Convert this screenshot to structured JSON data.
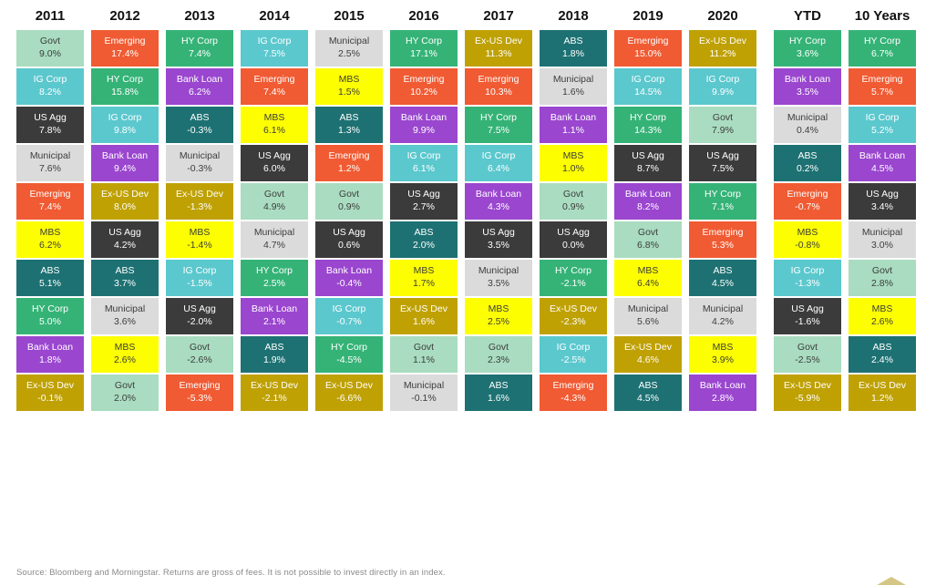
{
  "asset_styles": {
    "Govt": {
      "bg": "#A9DCC0",
      "fg": "#3D3D3D"
    },
    "IG Corp": {
      "bg": "#5BC8CE",
      "fg": "#FFFFFF"
    },
    "US Agg": {
      "bg": "#3B3B3B",
      "fg": "#FFFFFF"
    },
    "Municipal": {
      "bg": "#DBDBDB",
      "fg": "#3D3D3D"
    },
    "Emerging": {
      "bg": "#F05B33",
      "fg": "#FFFFFF"
    },
    "MBS": {
      "bg": "#FDFF00",
      "fg": "#3D3D3D"
    },
    "ABS": {
      "bg": "#1E7173",
      "fg": "#FFFFFF"
    },
    "HY Corp": {
      "bg": "#35B377",
      "fg": "#FFFFFF"
    },
    "Bank Loan": {
      "bg": "#9A46CF",
      "fg": "#FFFFFF"
    },
    "Ex-US Dev": {
      "bg": "#BFA104",
      "fg": "#FFFFFF"
    }
  },
  "chart_data": {
    "type": "table",
    "title": "Fixed income asset class returns by year (quilt chart)",
    "legend_position": "none",
    "columns": [
      {
        "label": "2011",
        "cells": [
          {
            "asset": "Govt",
            "value": "9.0%"
          },
          {
            "asset": "IG Corp",
            "value": "8.2%"
          },
          {
            "asset": "US Agg",
            "value": "7.8%"
          },
          {
            "asset": "Municipal",
            "value": "7.6%"
          },
          {
            "asset": "Emerging",
            "value": "7.4%"
          },
          {
            "asset": "MBS",
            "value": "6.2%"
          },
          {
            "asset": "ABS",
            "value": "5.1%"
          },
          {
            "asset": "HY Corp",
            "value": "5.0%"
          },
          {
            "asset": "Bank Loan",
            "value": "1.8%"
          },
          {
            "asset": "Ex-US Dev",
            "value": "-0.1%"
          }
        ]
      },
      {
        "label": "2012",
        "cells": [
          {
            "asset": "Emerging",
            "value": "17.4%"
          },
          {
            "asset": "HY Corp",
            "value": "15.8%"
          },
          {
            "asset": "IG Corp",
            "value": "9.8%"
          },
          {
            "asset": "Bank Loan",
            "value": "9.4%"
          },
          {
            "asset": "Ex-US Dev",
            "value": "8.0%"
          },
          {
            "asset": "US Agg",
            "value": "4.2%"
          },
          {
            "asset": "ABS",
            "value": "3.7%"
          },
          {
            "asset": "Municipal",
            "value": "3.6%"
          },
          {
            "asset": "MBS",
            "value": "2.6%"
          },
          {
            "asset": "Govt",
            "value": "2.0%"
          }
        ]
      },
      {
        "label": "2013",
        "cells": [
          {
            "asset": "HY Corp",
            "value": "7.4%"
          },
          {
            "asset": "Bank Loan",
            "value": "6.2%"
          },
          {
            "asset": "ABS",
            "value": "-0.3%"
          },
          {
            "asset": "Municipal",
            "value": "-0.3%"
          },
          {
            "asset": "Ex-US Dev",
            "value": "-1.3%"
          },
          {
            "asset": "MBS",
            "value": "-1.4%"
          },
          {
            "asset": "IG Corp",
            "value": "-1.5%"
          },
          {
            "asset": "US Agg",
            "value": "-2.0%"
          },
          {
            "asset": "Govt",
            "value": "-2.6%"
          },
          {
            "asset": "Emerging",
            "value": "-5.3%"
          }
        ]
      },
      {
        "label": "2014",
        "cells": [
          {
            "asset": "IG Corp",
            "value": "7.5%"
          },
          {
            "asset": "Emerging",
            "value": "7.4%"
          },
          {
            "asset": "MBS",
            "value": "6.1%"
          },
          {
            "asset": "US Agg",
            "value": "6.0%"
          },
          {
            "asset": "Govt",
            "value": "4.9%"
          },
          {
            "asset": "Municipal",
            "value": "4.7%"
          },
          {
            "asset": "HY Corp",
            "value": "2.5%"
          },
          {
            "asset": "Bank Loan",
            "value": "2.1%"
          },
          {
            "asset": "ABS",
            "value": "1.9%"
          },
          {
            "asset": "Ex-US Dev",
            "value": "-2.1%"
          }
        ]
      },
      {
        "label": "2015",
        "cells": [
          {
            "asset": "Municipal",
            "value": "2.5%"
          },
          {
            "asset": "MBS",
            "value": "1.5%"
          },
          {
            "asset": "ABS",
            "value": "1.3%"
          },
          {
            "asset": "Emerging",
            "value": "1.2%"
          },
          {
            "asset": "Govt",
            "value": "0.9%"
          },
          {
            "asset": "US Agg",
            "value": "0.6%"
          },
          {
            "asset": "Bank Loan",
            "value": "-0.4%"
          },
          {
            "asset": "IG Corp",
            "value": "-0.7%"
          },
          {
            "asset": "HY Corp",
            "value": "-4.5%"
          },
          {
            "asset": "Ex-US Dev",
            "value": "-6.6%"
          }
        ]
      },
      {
        "label": "2016",
        "cells": [
          {
            "asset": "HY Corp",
            "value": "17.1%"
          },
          {
            "asset": "Emerging",
            "value": "10.2%"
          },
          {
            "asset": "Bank Loan",
            "value": "9.9%"
          },
          {
            "asset": "IG Corp",
            "value": "6.1%"
          },
          {
            "asset": "US Agg",
            "value": "2.7%"
          },
          {
            "asset": "ABS",
            "value": "2.0%"
          },
          {
            "asset": "MBS",
            "value": "1.7%"
          },
          {
            "asset": "Ex-US Dev",
            "value": "1.6%"
          },
          {
            "asset": "Govt",
            "value": "1.1%"
          },
          {
            "asset": "Municipal",
            "value": "-0.1%"
          }
        ]
      },
      {
        "label": "2017",
        "cells": [
          {
            "asset": "Ex-US Dev",
            "value": "11.3%"
          },
          {
            "asset": "Emerging",
            "value": "10.3%"
          },
          {
            "asset": "HY Corp",
            "value": "7.5%"
          },
          {
            "asset": "IG Corp",
            "value": "6.4%"
          },
          {
            "asset": "Bank Loan",
            "value": "4.3%"
          },
          {
            "asset": "US Agg",
            "value": "3.5%"
          },
          {
            "asset": "Municipal",
            "value": "3.5%"
          },
          {
            "asset": "MBS",
            "value": "2.5%"
          },
          {
            "asset": "Govt",
            "value": "2.3%"
          },
          {
            "asset": "ABS",
            "value": "1.6%"
          }
        ]
      },
      {
        "label": "2018",
        "cells": [
          {
            "asset": "ABS",
            "value": "1.8%"
          },
          {
            "asset": "Municipal",
            "value": "1.6%"
          },
          {
            "asset": "Bank Loan",
            "value": "1.1%"
          },
          {
            "asset": "MBS",
            "value": "1.0%"
          },
          {
            "asset": "Govt",
            "value": "0.9%"
          },
          {
            "asset": "US Agg",
            "value": "0.0%"
          },
          {
            "asset": "HY Corp",
            "value": "-2.1%"
          },
          {
            "asset": "Ex-US Dev",
            "value": "-2.3%"
          },
          {
            "asset": "IG Corp",
            "value": "-2.5%"
          },
          {
            "asset": "Emerging",
            "value": "-4.3%"
          }
        ]
      },
      {
        "label": "2019",
        "cells": [
          {
            "asset": "Emerging",
            "value": "15.0%"
          },
          {
            "asset": "IG Corp",
            "value": "14.5%"
          },
          {
            "asset": "HY Corp",
            "value": "14.3%"
          },
          {
            "asset": "US Agg",
            "value": "8.7%"
          },
          {
            "asset": "Bank Loan",
            "value": "8.2%"
          },
          {
            "asset": "Govt",
            "value": "6.8%"
          },
          {
            "asset": "MBS",
            "value": "6.4%"
          },
          {
            "asset": "Municipal",
            "value": "5.6%"
          },
          {
            "asset": "Ex-US Dev",
            "value": "4.6%"
          },
          {
            "asset": "ABS",
            "value": "4.5%"
          }
        ]
      },
      {
        "label": "2020",
        "cells": [
          {
            "asset": "Ex-US Dev",
            "value": "11.2%"
          },
          {
            "asset": "IG Corp",
            "value": "9.9%"
          },
          {
            "asset": "Govt",
            "value": "7.9%"
          },
          {
            "asset": "US Agg",
            "value": "7.5%"
          },
          {
            "asset": "HY Corp",
            "value": "7.1%"
          },
          {
            "asset": "Emerging",
            "value": "5.3%"
          },
          {
            "asset": "ABS",
            "value": "4.5%"
          },
          {
            "asset": "Municipal",
            "value": "4.2%"
          },
          {
            "asset": "MBS",
            "value": "3.9%"
          },
          {
            "asset": "Bank Loan",
            "value": "2.8%"
          }
        ]
      },
      {
        "label": "YTD",
        "gap_before": true,
        "cells": [
          {
            "asset": "HY Corp",
            "value": "3.6%"
          },
          {
            "asset": "Bank Loan",
            "value": "3.5%"
          },
          {
            "asset": "Municipal",
            "value": "0.4%"
          },
          {
            "asset": "ABS",
            "value": "0.2%"
          },
          {
            "asset": "Emerging",
            "value": "-0.7%"
          },
          {
            "asset": "MBS",
            "value": "-0.8%"
          },
          {
            "asset": "IG Corp",
            "value": "-1.3%"
          },
          {
            "asset": "US Agg",
            "value": "-1.6%"
          },
          {
            "asset": "Govt",
            "value": "-2.5%"
          },
          {
            "asset": "Ex-US Dev",
            "value": "-5.9%"
          }
        ]
      },
      {
        "label": "10 Years",
        "cells": [
          {
            "asset": "HY Corp",
            "value": "6.7%"
          },
          {
            "asset": "Emerging",
            "value": "5.7%"
          },
          {
            "asset": "IG Corp",
            "value": "5.2%"
          },
          {
            "asset": "Bank Loan",
            "value": "4.5%"
          },
          {
            "asset": "US Agg",
            "value": "3.4%"
          },
          {
            "asset": "Municipal",
            "value": "3.0%"
          },
          {
            "asset": "Govt",
            "value": "2.8%"
          },
          {
            "asset": "MBS",
            "value": "2.6%"
          },
          {
            "asset": "ABS",
            "value": "2.4%"
          },
          {
            "asset": "Ex-US Dev",
            "value": "1.2%"
          }
        ]
      }
    ]
  },
  "footer": {
    "source": "Source: Bloomberg and Morningstar. Returns are gross of fees. It is not possible to invest directly in an index."
  },
  "logo": {
    "color": "#C5B35C"
  }
}
